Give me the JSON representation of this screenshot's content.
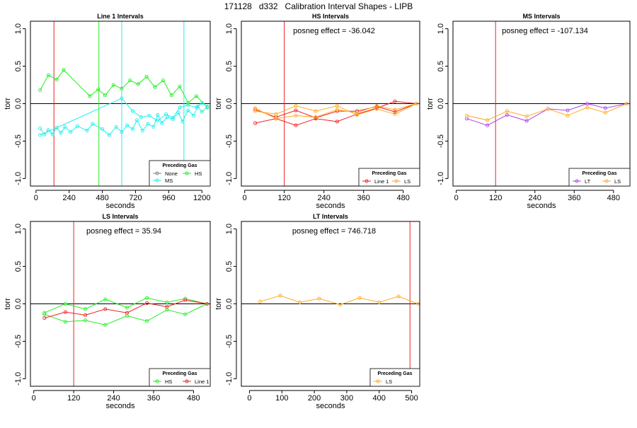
{
  "page_title": "171128   d332   Calibration Interval Shapes - LIPB",
  "colors": {
    "None": "#808080",
    "HS": "#22ee22",
    "MS": "#22eeee",
    "Line 1": "#ee2222",
    "LS": "#ffaa22",
    "LT": "#aa44ee",
    "marker": "#cc3333",
    "zero": "#000000"
  },
  "chart_data": [
    {
      "type": "line",
      "title": "Line 1 Intervals",
      "xlabel": "seconds",
      "ylabel": "torr",
      "xlim": [
        -40,
        1260
      ],
      "ylim": [
        -1.1,
        1.1
      ],
      "xticks": [
        0,
        240,
        480,
        720,
        960,
        1200
      ],
      "yticks": [
        -1.0,
        -0.5,
        0.0,
        0.5,
        1.0
      ],
      "ytick_labels": [
        "-1.0",
        "-0.5",
        "0.0",
        "0.5",
        "1.0"
      ],
      "annotation": "",
      "vlines": [
        {
          "x": 130,
          "color_key": "Line 1"
        },
        {
          "x": 455,
          "color_key": "HS"
        },
        {
          "x": 620,
          "color_key": "MS"
        },
        {
          "x": 1070,
          "color_key": "MS"
        }
      ],
      "legend": {
        "title": "Preceding Gas",
        "entries": [
          "None",
          "HS",
          "MS"
        ]
      },
      "series": [
        {
          "name": "HS",
          "color_key": "HS",
          "points": [
            [
              30,
              0.18
            ],
            [
              90,
              0.38
            ],
            [
              150,
              0.32
            ],
            [
              200,
              0.45
            ],
            [
              390,
              0.1
            ],
            [
              450,
              0.19
            ],
            [
              500,
              0.11
            ],
            [
              560,
              0.25
            ],
            [
              620,
              0.2
            ],
            [
              680,
              0.31
            ],
            [
              740,
              0.26
            ],
            [
              800,
              0.36
            ],
            [
              860,
              0.22
            ],
            [
              920,
              0.31
            ],
            [
              980,
              0.11
            ],
            [
              1040,
              0.23
            ],
            [
              1100,
              0.01
            ],
            [
              1160,
              0.1
            ],
            [
              1240,
              -0.05
            ]
          ]
        },
        {
          "name": "MS",
          "color_key": "MS",
          "points": [
            [
              30,
              -0.33
            ],
            [
              60,
              -0.41
            ],
            [
              90,
              -0.35
            ],
            [
              120,
              -0.41
            ],
            [
              150,
              -0.32
            ],
            [
              180,
              -0.39
            ],
            [
              210,
              -0.31
            ],
            [
              250,
              -0.38
            ],
            [
              300,
              -0.3
            ],
            [
              370,
              -0.36
            ],
            [
              410,
              -0.27
            ],
            [
              480,
              -0.34
            ],
            [
              530,
              -0.42
            ],
            [
              580,
              -0.31
            ],
            [
              620,
              -0.38
            ],
            [
              660,
              -0.29
            ],
            [
              700,
              -0.34
            ],
            [
              730,
              -0.22
            ],
            [
              770,
              -0.36
            ],
            [
              810,
              -0.27
            ],
            [
              850,
              -0.31
            ],
            [
              880,
              -0.15
            ],
            [
              910,
              -0.26
            ],
            [
              950,
              -0.18
            ],
            [
              990,
              -0.21
            ],
            [
              1030,
              -0.12
            ],
            [
              1060,
              -0.24
            ],
            [
              1100,
              -0.09
            ],
            [
              1140,
              -0.16
            ],
            [
              1170,
              -0.04
            ],
            [
              1200,
              -0.11
            ],
            [
              1240,
              -0.04
            ]
          ]
        },
        {
          "name": "MS",
          "color_key": "MS",
          "points": [
            [
              30,
              -0.42
            ],
            [
              620,
              0.07
            ],
            [
              700,
              -0.1
            ],
            [
              760,
              -0.18
            ],
            [
              820,
              -0.16
            ],
            [
              880,
              -0.23
            ],
            [
              940,
              -0.14
            ],
            [
              990,
              -0.19
            ],
            [
              1040,
              -0.05
            ],
            [
              1100,
              -0.02
            ],
            [
              1160,
              -0.05
            ],
            [
              1200,
              0.01
            ],
            [
              1240,
              -0.04
            ]
          ]
        }
      ]
    },
    {
      "type": "line",
      "title": "HS Intervals",
      "xlabel": "seconds",
      "ylabel": "torr",
      "xlim": [
        -10,
        530
      ],
      "ylim": [
        -1.1,
        1.1
      ],
      "xticks": [
        0,
        120,
        240,
        360,
        480
      ],
      "yticks": [
        -1.0,
        -0.5,
        0.0,
        0.5,
        1.0
      ],
      "ytick_labels": [
        "-1.0",
        "-0.5",
        "0.0",
        "0.5",
        "1.0"
      ],
      "annotation": "posneg effect = -36.042",
      "vlines": [
        {
          "x": 120,
          "color_key": "Line 1"
        }
      ],
      "legend": {
        "title": "Preceding Gas",
        "entries": [
          "Line 1",
          "LS"
        ]
      },
      "series": [
        {
          "name": "Line 1",
          "color_key": "Line 1",
          "points": [
            [
              32,
              -0.26
            ],
            [
              95,
              -0.2
            ],
            [
              155,
              -0.29
            ],
            [
              215,
              -0.2
            ],
            [
              280,
              -0.24
            ],
            [
              340,
              -0.14
            ],
            [
              400,
              -0.06
            ],
            [
              455,
              0.03
            ],
            [
              520,
              0.0
            ]
          ]
        },
        {
          "name": "Line 1",
          "color_key": "Line 1",
          "points": [
            [
              32,
              -0.08
            ],
            [
              95,
              -0.18
            ],
            [
              155,
              -0.09
            ],
            [
              215,
              -0.19
            ],
            [
              280,
              -0.1
            ],
            [
              340,
              -0.1
            ],
            [
              400,
              -0.04
            ],
            [
              455,
              -0.11
            ],
            [
              520,
              0.0
            ]
          ]
        },
        {
          "name": "LS",
          "color_key": "LS",
          "points": [
            [
              32,
              -0.1
            ],
            [
              95,
              -0.14
            ],
            [
              155,
              -0.03
            ],
            [
              215,
              -0.1
            ],
            [
              280,
              -0.03
            ],
            [
              340,
              -0.15
            ],
            [
              400,
              -0.07
            ],
            [
              455,
              -0.14
            ],
            [
              520,
              0.0
            ]
          ]
        },
        {
          "name": "LS",
          "color_key": "LS",
          "points": [
            [
              32,
              -0.06
            ],
            [
              95,
              -0.2
            ],
            [
              155,
              -0.16
            ],
            [
              215,
              -0.18
            ],
            [
              280,
              -0.08
            ],
            [
              340,
              -0.12
            ],
            [
              400,
              -0.03
            ],
            [
              455,
              -0.08
            ],
            [
              520,
              0.0
            ]
          ]
        }
      ]
    },
    {
      "type": "line",
      "title": "MS Intervals",
      "xlabel": "seconds",
      "ylabel": "torr",
      "xlim": [
        -10,
        530
      ],
      "ylim": [
        -1.1,
        1.1
      ],
      "xticks": [
        0,
        120,
        240,
        360,
        480
      ],
      "yticks": [
        -1.0,
        -0.5,
        0.0,
        0.5,
        1.0
      ],
      "ytick_labels": [
        "-1.0",
        "-0.5",
        "0.0",
        "0.5",
        "1.0"
      ],
      "annotation": "posneg effect = -107.134",
      "vlines": [
        {
          "x": 120,
          "color_key": "Line 1"
        }
      ],
      "legend": {
        "title": "Preceding Gas",
        "entries": [
          "LT",
          "LS"
        ]
      },
      "series": [
        {
          "name": "LT",
          "color_key": "LT",
          "points": [
            [
              32,
              -0.2
            ],
            [
              95,
              -0.29
            ],
            [
              155,
              -0.15
            ],
            [
              215,
              -0.23
            ],
            [
              280,
              -0.07
            ],
            [
              340,
              -0.09
            ],
            [
              400,
              0.0
            ],
            [
              455,
              -0.06
            ],
            [
              520,
              0.0
            ]
          ]
        },
        {
          "name": "LS",
          "color_key": "LS",
          "points": [
            [
              32,
              -0.16
            ],
            [
              95,
              -0.22
            ],
            [
              155,
              -0.1
            ],
            [
              215,
              -0.17
            ],
            [
              280,
              -0.07
            ],
            [
              340,
              -0.16
            ],
            [
              400,
              -0.05
            ],
            [
              455,
              -0.12
            ],
            [
              520,
              0.0
            ]
          ]
        }
      ]
    },
    {
      "type": "line",
      "title": "LS Intervals",
      "xlabel": "seconds",
      "ylabel": "torr",
      "xlim": [
        -10,
        530
      ],
      "ylim": [
        -1.1,
        1.1
      ],
      "xticks": [
        0,
        120,
        240,
        360,
        480
      ],
      "yticks": [
        -1.0,
        -0.5,
        0.0,
        0.5,
        1.0
      ],
      "ytick_labels": [
        "-1.0",
        "-0.5",
        "0.0",
        "0.5",
        "1.0"
      ],
      "annotation": "posneg effect = 35.94",
      "vlines": [
        {
          "x": 120,
          "color_key": "Line 1"
        }
      ],
      "legend": {
        "title": "Preceding Gas",
        "entries": [
          "HS",
          "Line 1"
        ]
      },
      "series": [
        {
          "name": "HS",
          "color_key": "HS",
          "points": [
            [
              32,
              -0.12
            ],
            [
              95,
              0.0
            ],
            [
              155,
              -0.07
            ],
            [
              215,
              0.06
            ],
            [
              280,
              -0.05
            ],
            [
              340,
              0.08
            ],
            [
              400,
              0.02
            ],
            [
              455,
              0.07
            ],
            [
              520,
              0.0
            ]
          ]
        },
        {
          "name": "HS",
          "color_key": "HS",
          "points": [
            [
              32,
              -0.14
            ],
            [
              95,
              -0.24
            ],
            [
              155,
              -0.22
            ],
            [
              215,
              -0.28
            ],
            [
              280,
              -0.16
            ],
            [
              340,
              -0.23
            ],
            [
              400,
              -0.08
            ],
            [
              455,
              -0.14
            ],
            [
              520,
              0.0
            ]
          ]
        },
        {
          "name": "Line 1",
          "color_key": "Line 1",
          "points": [
            [
              32,
              -0.19
            ],
            [
              95,
              -0.11
            ],
            [
              155,
              -0.15
            ],
            [
              215,
              -0.07
            ],
            [
              280,
              -0.12
            ],
            [
              340,
              0.01
            ],
            [
              400,
              -0.04
            ],
            [
              455,
              0.05
            ],
            [
              520,
              0.0
            ]
          ]
        }
      ]
    },
    {
      "type": "line",
      "title": "LT Intervals",
      "xlabel": "seconds",
      "ylabel": "torr",
      "xlim": [
        -25,
        525
      ],
      "ylim": [
        -1.1,
        1.1
      ],
      "xticks": [
        0,
        100,
        200,
        300,
        400,
        500
      ],
      "yticks": [
        -1.0,
        -0.5,
        0.0,
        0.5,
        1.0
      ],
      "ytick_labels": [
        "-1.0",
        "-0.5",
        "0.0",
        "0.5",
        "1.0"
      ],
      "annotation": "posneg effect = 746.718",
      "vlines": [
        {
          "x": 495,
          "color_key": "Line 1"
        }
      ],
      "legend": {
        "title": "Preceding Gas",
        "entries": [
          "LS"
        ]
      },
      "series": [
        {
          "name": "LS",
          "color_key": "LS",
          "points": [
            [
              32,
              0.03
            ],
            [
              95,
              0.11
            ],
            [
              155,
              0.02
            ],
            [
              215,
              0.07
            ],
            [
              280,
              -0.01
            ],
            [
              340,
              0.08
            ],
            [
              400,
              0.02
            ],
            [
              460,
              0.1
            ],
            [
              520,
              0.0
            ]
          ]
        }
      ]
    }
  ]
}
